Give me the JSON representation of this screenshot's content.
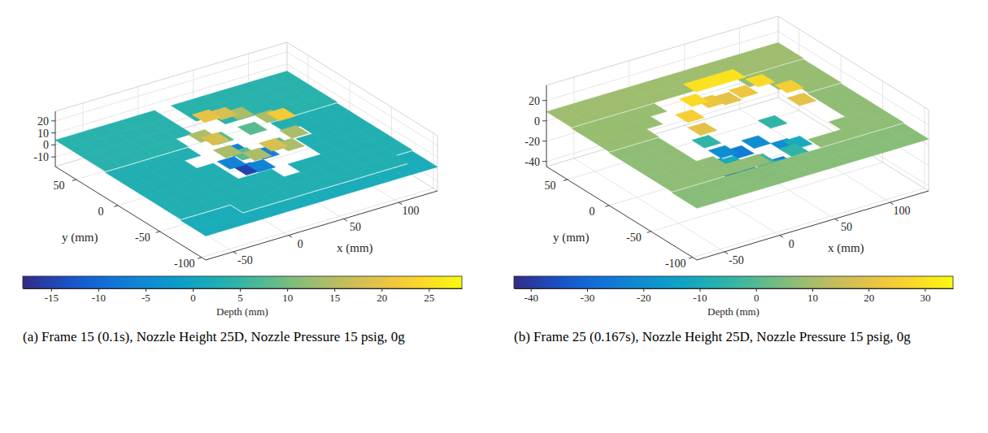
{
  "chart_data": [
    {
      "type": "surface",
      "caption": "(a) Frame 15 (0.1s), Nozzle Height 25D, Nozzle Pressure 15 psig, 0g",
      "x_label": "x (mm)",
      "y_label": "y (mm)",
      "xlim": [
        -75,
        135
      ],
      "xticks": [
        -50,
        0,
        50,
        100
      ],
      "ylim": [
        -105,
        75
      ],
      "yticks": [
        -100,
        -50,
        0,
        50
      ],
      "zlim": [
        -18,
        28
      ],
      "zticks": [
        -10,
        0,
        10,
        20
      ],
      "grid": true,
      "x_edges": [
        -75,
        -60,
        -45,
        -30,
        -15,
        0,
        15,
        30,
        45,
        60,
        75,
        90,
        105,
        120,
        135
      ],
      "y_edges": [
        -105,
        -90,
        -75,
        -60,
        -45,
        -30,
        -15,
        0,
        15,
        30,
        45,
        60,
        75
      ],
      "depth": [
        [
          2,
          2,
          2,
          2,
          2,
          2,
          2,
          2,
          2,
          2,
          2,
          2,
          2,
          2
        ],
        [
          2,
          2,
          2,
          3,
          3,
          3,
          3,
          3,
          3,
          3,
          3,
          3,
          3,
          2
        ],
        [
          3,
          3,
          3,
          3,
          3,
          3,
          3,
          3,
          3,
          3,
          3,
          3,
          3,
          3
        ],
        [
          3,
          3,
          3,
          3,
          3,
          3,
          3,
          null,
          3,
          3,
          3,
          3,
          3,
          3
        ],
        [
          3,
          3,
          3,
          3,
          3,
          null,
          14,
          18,
          14,
          null,
          3,
          3,
          3,
          3
        ],
        [
          3,
          3,
          3,
          3,
          3,
          14,
          8,
          -6,
          8,
          14,
          3,
          3,
          3,
          3
        ],
        [
          3,
          3,
          3,
          3,
          null,
          18,
          -6,
          -15,
          -6,
          22,
          null,
          3,
          3,
          3
        ],
        [
          3,
          3,
          3,
          3,
          3,
          14,
          8,
          -6,
          8,
          14,
          3,
          3,
          3,
          3
        ],
        [
          4,
          4,
          4,
          4,
          4,
          null,
          20,
          18,
          14,
          null,
          4,
          4,
          4,
          4
        ],
        [
          4,
          4,
          4,
          4,
          4,
          4,
          null,
          null,
          4,
          4,
          4,
          4,
          4,
          4
        ],
        [
          4,
          4,
          4,
          4,
          4,
          4,
          null,
          4,
          4,
          4,
          4,
          4,
          4,
          4
        ],
        [
          4,
          4,
          4,
          4,
          4,
          4,
          null,
          4,
          4,
          4,
          4,
          4,
          4,
          4
        ]
      ],
      "colorbar": {
        "label": "Depth (mm)",
        "range": [
          -18,
          28.5
        ],
        "ticks": [
          -15,
          -10,
          -5,
          0,
          5,
          10,
          15,
          20,
          25
        ]
      }
    },
    {
      "type": "surface",
      "caption": "(b) Frame 25 (0.167s), Nozzle Height 25D, Nozzle Pressure 15 psig, 0g",
      "x_label": "x (mm)",
      "y_label": "y (mm)",
      "xlim": [
        -75,
        135
      ],
      "xticks": [
        -50,
        0,
        50,
        100
      ],
      "ylim": [
        -105,
        75
      ],
      "yticks": [
        -100,
        -50,
        0,
        50
      ],
      "zlim": [
        -45,
        35
      ],
      "zticks": [
        -40,
        -20,
        0,
        20
      ],
      "grid": true,
      "x_edges": [
        -75,
        -60,
        -45,
        -30,
        -15,
        0,
        15,
        30,
        45,
        60,
        75,
        90,
        105,
        120,
        135
      ],
      "y_edges": [
        -105,
        -90,
        -75,
        -60,
        -45,
        -30,
        -15,
        0,
        15,
        30,
        45,
        60,
        75
      ],
      "depth": [
        [
          6,
          6,
          6,
          6,
          6,
          6,
          6,
          6,
          6,
          6,
          6,
          6,
          6,
          6
        ],
        [
          6,
          6,
          6,
          6,
          6,
          6,
          6,
          6,
          6,
          6,
          6,
          6,
          6,
          6
        ],
        [
          7,
          7,
          7,
          7,
          7,
          7,
          null,
          null,
          null,
          7,
          7,
          7,
          7,
          7
        ],
        [
          7,
          7,
          7,
          7,
          null,
          null,
          -5,
          -15,
          -5,
          null,
          null,
          7,
          7,
          7
        ],
        [
          7,
          7,
          7,
          null,
          null,
          -10,
          -25,
          -30,
          -25,
          -10,
          null,
          null,
          7,
          7
        ],
        [
          7,
          7,
          7,
          null,
          20,
          -20,
          -35,
          -38,
          -35,
          -20,
          20,
          null,
          7,
          7
        ],
        [
          7,
          7,
          7,
          null,
          25,
          -5,
          -20,
          -25,
          -20,
          -5,
          25,
          null,
          7,
          7
        ],
        [
          8,
          8,
          8,
          null,
          null,
          28,
          22,
          20,
          22,
          28,
          null,
          null,
          8,
          8
        ],
        [
          8,
          8,
          8,
          8,
          null,
          null,
          30,
          30,
          30,
          null,
          null,
          8,
          8,
          8
        ],
        [
          8,
          8,
          8,
          8,
          8,
          null,
          null,
          null,
          null,
          null,
          8,
          8,
          8,
          8
        ],
        [
          9,
          9,
          9,
          9,
          9,
          9,
          9,
          9,
          9,
          9,
          9,
          9,
          9,
          9
        ],
        [
          9,
          9,
          9,
          9,
          9,
          9,
          9,
          9,
          9,
          9,
          9,
          9,
          9,
          9
        ]
      ],
      "colorbar": {
        "label": "Depth (mm)",
        "range": [
          -43,
          35
        ],
        "ticks": [
          -40,
          -30,
          -20,
          -10,
          0,
          10,
          20,
          30
        ]
      }
    }
  ]
}
